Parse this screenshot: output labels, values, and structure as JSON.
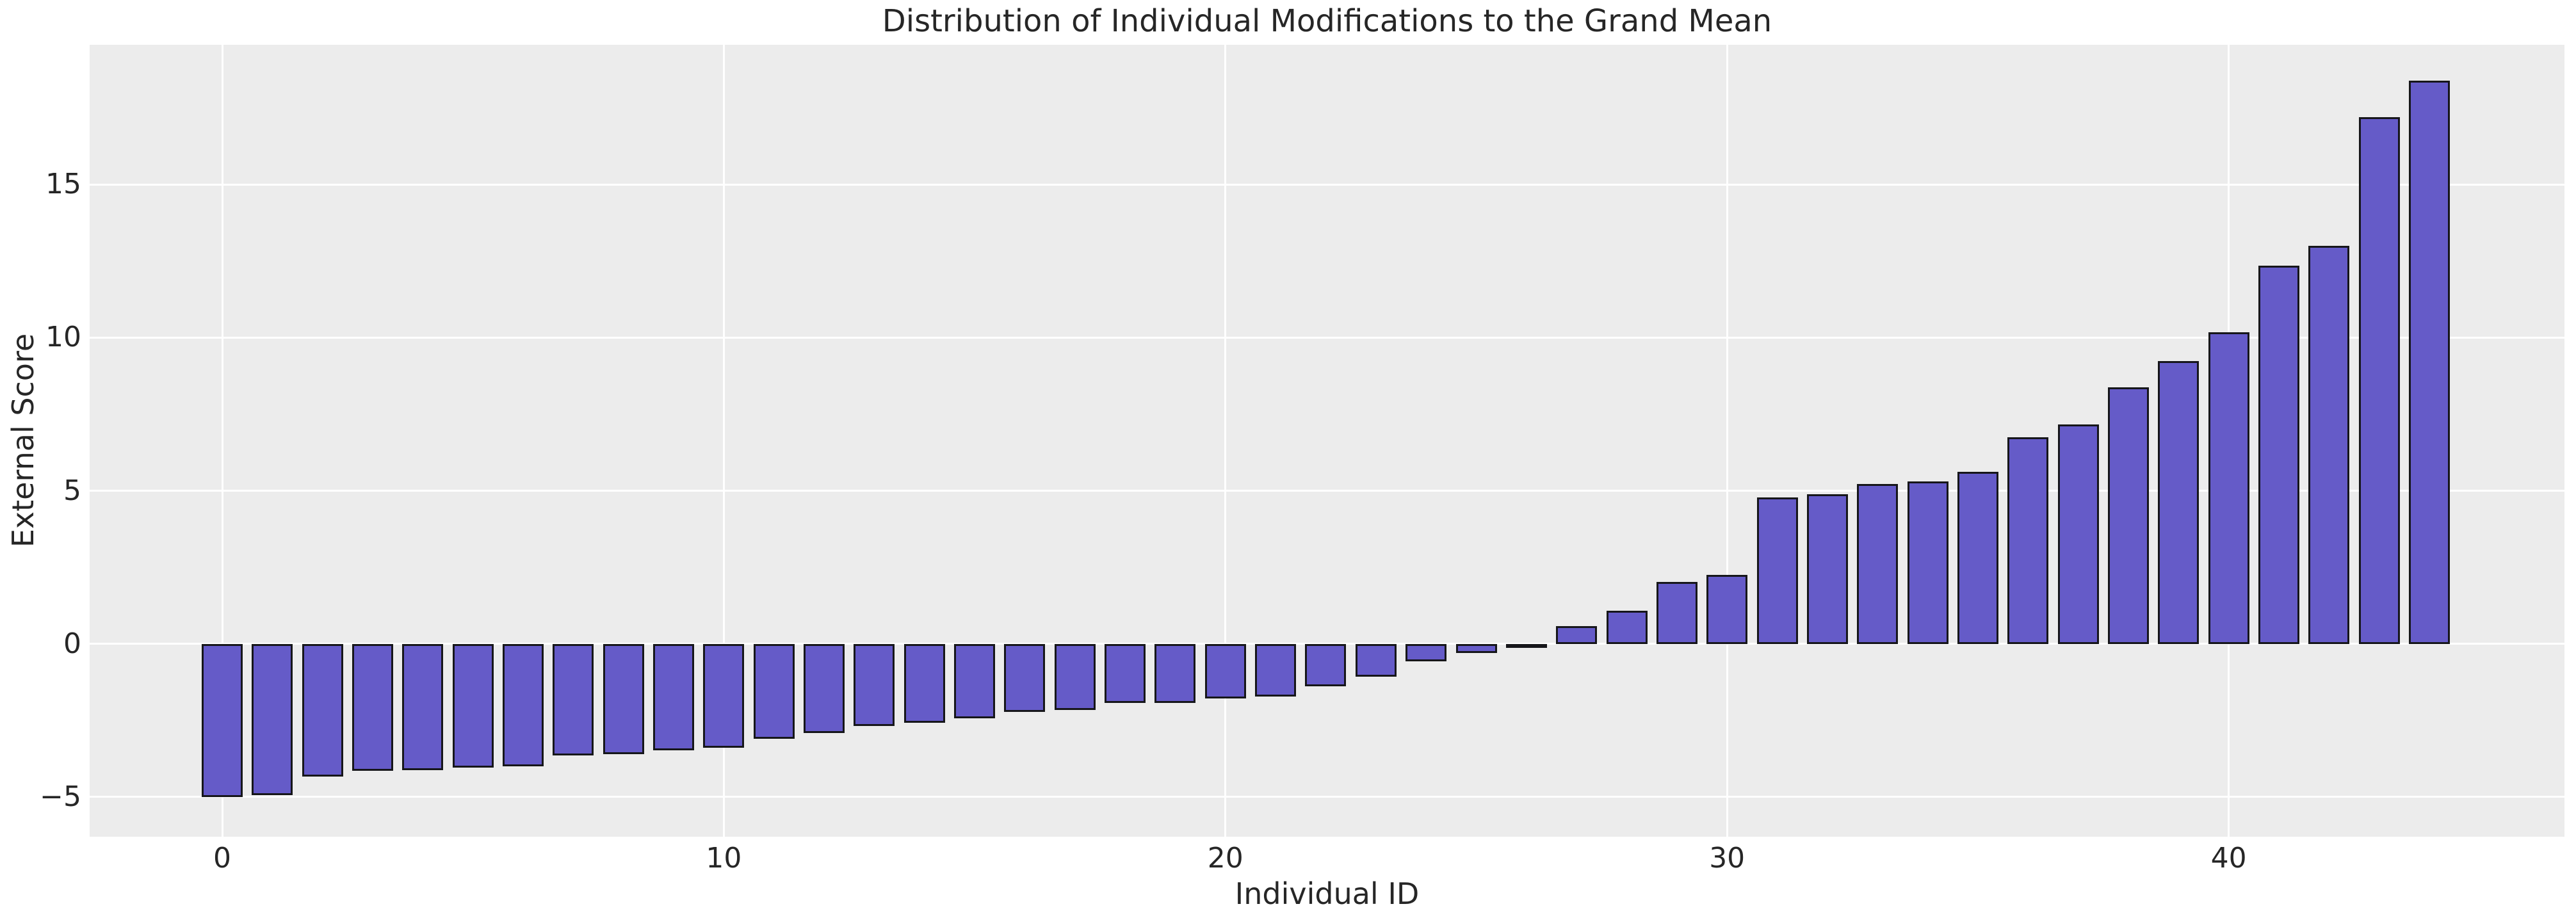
{
  "figure": {
    "title": "Distribution of Individual Modifications to the Grand Mean",
    "xlabel": "Individual ID",
    "ylabel": "External Score"
  },
  "chart_data": {
    "type": "bar",
    "title": "Distribution of Individual Modifications to the Grand Mean",
    "xlabel": "Individual ID",
    "ylabel": "External Score",
    "x": [
      0,
      1,
      2,
      3,
      4,
      5,
      6,
      7,
      8,
      9,
      10,
      11,
      12,
      13,
      14,
      15,
      16,
      17,
      18,
      19,
      20,
      21,
      22,
      23,
      24,
      25,
      26,
      27,
      28,
      29,
      30,
      31,
      32,
      33,
      34,
      35,
      36,
      37,
      38,
      39,
      40,
      41,
      42,
      43,
      44
    ],
    "values": [
      -5.0,
      -4.95,
      -4.33,
      -4.15,
      -4.12,
      -4.05,
      -4.0,
      -3.64,
      -3.6,
      -3.47,
      -3.39,
      -3.1,
      -2.91,
      -2.69,
      -2.58,
      -2.43,
      -2.23,
      -2.16,
      -1.94,
      -1.92,
      -1.78,
      -1.72,
      -1.38,
      -1.08,
      -0.57,
      -0.3,
      -0.05,
      0.57,
      1.09,
      2.02,
      2.26,
      4.78,
      4.88,
      5.21,
      5.31,
      5.62,
      6.74,
      7.17,
      8.38,
      9.23,
      10.17,
      12.35,
      13.0,
      17.19,
      18.39
    ],
    "xticks": {
      "positions": [
        0,
        10,
        20,
        30,
        40
      ],
      "labels": [
        "0",
        "10",
        "20",
        "30",
        "40"
      ]
    },
    "yticks": {
      "values": [
        -5,
        0,
        5,
        10,
        15
      ],
      "labels": [
        "−5",
        "0",
        "5",
        "10",
        "15"
      ]
    },
    "xlim": [
      -2.64,
      46.7
    ],
    "ylim": [
      -6.3,
      19.55
    ],
    "grid": true,
    "legend": false,
    "sorted": "ascending",
    "colors": {
      "bar_fill": "#655BC8",
      "bar_edge": "#16161a",
      "plot_bg": "#ECECEC",
      "grid": "#FFFFFF",
      "figure_bg": "#FFFFFF",
      "text": "#262626"
    }
  }
}
